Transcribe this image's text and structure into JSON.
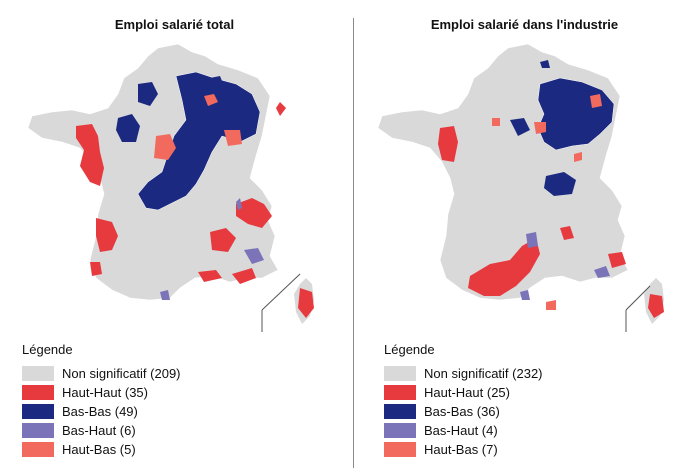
{
  "colors": {
    "non_significatif": "#d9d9d9",
    "haut_haut": "#e63a3f",
    "bas_bas": "#1b2a80",
    "bas_haut": "#7b74b8",
    "haut_bas": "#f26a5e",
    "border": "#ffffff"
  },
  "panels": [
    {
      "title": "Emploi salarié total",
      "legend_title": "Légende",
      "legend": [
        {
          "label": "Non significatif (209)",
          "color": "#d9d9d9"
        },
        {
          "label": "Haut-Haut (35)",
          "color": "#e63a3f"
        },
        {
          "label": "Bas-Bas (49)",
          "color": "#1b2a80"
        },
        {
          "label": "Bas-Haut (6)",
          "color": "#7b74b8"
        },
        {
          "label": "Haut-Bas (5)",
          "color": "#f26a5e"
        }
      ]
    },
    {
      "title": "Emploi salarié dans l'industrie",
      "legend_title": "Légende",
      "legend": [
        {
          "label": "Non significatif (232)",
          "color": "#d9d9d9"
        },
        {
          "label": "Haut-Haut (25)",
          "color": "#e63a3f"
        },
        {
          "label": "Bas-Bas (36)",
          "color": "#1b2a80"
        },
        {
          "label": "Bas-Haut (4)",
          "color": "#7b74b8"
        },
        {
          "label": "Haut-Bas (7)",
          "color": "#f26a5e"
        }
      ]
    }
  ]
}
